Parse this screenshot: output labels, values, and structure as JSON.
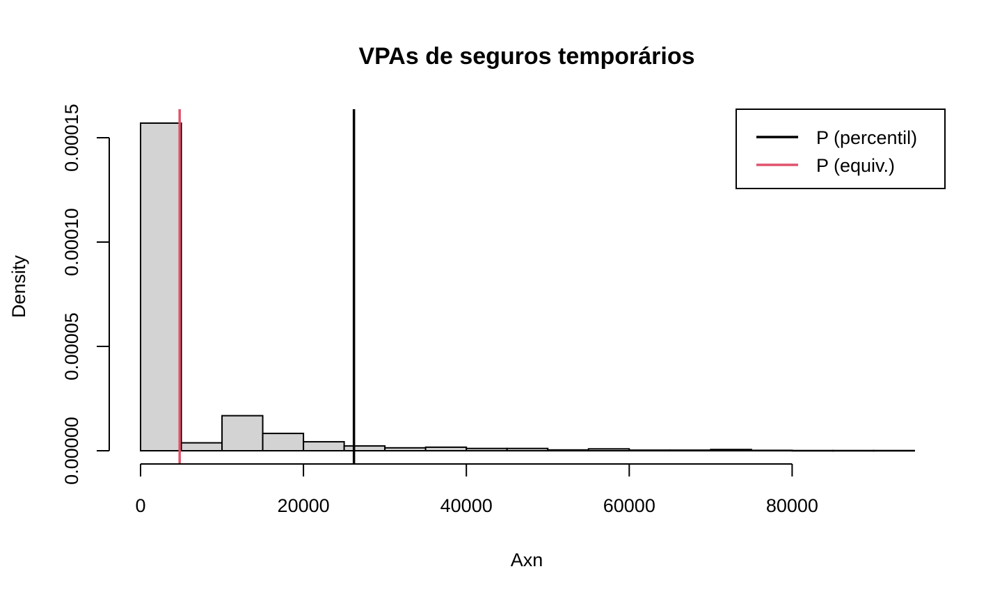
{
  "chart_data": {
    "type": "bar",
    "subtype": "histogram",
    "title": "VPAs de seguros temporários",
    "xlabel": "Axn",
    "ylabel": "Density",
    "bin_width": 5000,
    "bin_starts": [
      0,
      5000,
      10000,
      15000,
      20000,
      25000,
      30000,
      35000,
      40000,
      45000,
      50000,
      55000,
      60000,
      65000,
      70000,
      75000,
      80000,
      85000,
      90000
    ],
    "values": [
      0.000157,
      3.8e-06,
      1.68e-05,
      8.3e-06,
      4.3e-06,
      2.3e-06,
      1.4e-06,
      1.7e-06,
      1.1e-06,
      1.1e-06,
      4e-07,
      9e-07,
      3e-07,
      3e-07,
      6e-07,
      2e-07,
      1e-07,
      1e-07,
      1e-07
    ],
    "xlim": [
      0,
      95000
    ],
    "ylim": [
      0,
      0.00016
    ],
    "x_ticks": [
      0,
      20000,
      40000,
      60000,
      80000
    ],
    "x_tick_labels": [
      "0",
      "20000",
      "40000",
      "60000",
      "80000"
    ],
    "y_ticks": [
      0,
      5e-05,
      0.0001,
      0.00015
    ],
    "y_tick_labels": [
      "0.00000",
      "0.00005",
      "0.00010",
      "0.00015"
    ],
    "bar_fill": "#d3d3d3",
    "vlines": [
      {
        "name": "P (percentil)",
        "x": 26200,
        "color": "#000000"
      },
      {
        "name": "P (equiv.)",
        "x": 4800,
        "color": "#df536b"
      }
    ],
    "legend": {
      "position": "top-right",
      "entries": [
        {
          "label": "P (percentil)",
          "color": "#000000"
        },
        {
          "label": "P (equiv.)",
          "color": "#df536b"
        }
      ]
    },
    "grid": false
  }
}
